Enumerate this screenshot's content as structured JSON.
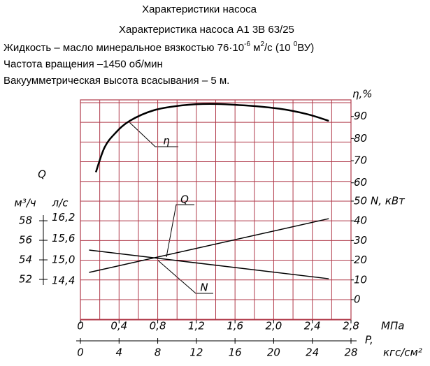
{
  "chart_data": {
    "type": "line",
    "title": "Характеристики насоса",
    "subtitle": "Характеристика насоса А1 3В 63/25",
    "notes": [
      [
        "Жидкость – масло минеральное вязкостью 76·10",
        "-6",
        " м",
        "2",
        "/с (10 ",
        "0",
        "ВУ)"
      ],
      [
        "Частота вращения –1450 об/мин"
      ],
      [
        "Вакуумметрическая высота всасывания – 5 м."
      ]
    ],
    "x_label": "МПа",
    "x2_label_prefix": "P,",
    "x2_label": "кгс/см²",
    "xlim": [
      0,
      2.8
    ],
    "xticks": [
      0,
      {
        "value": 0.4,
        "label": "0,4"
      },
      {
        "value": 0.8,
        "label": "0,8"
      },
      {
        "value": 1.2,
        "label": "1,2"
      },
      {
        "value": 1.6,
        "label": "1,6"
      },
      {
        "value": 2.0,
        "label": "2,0"
      },
      {
        "value": 2.4,
        "label": "2,4"
      },
      {
        "value": 2.8,
        "label": "2,8"
      }
    ],
    "x2lim": [
      0,
      28
    ],
    "x2ticks": [
      0,
      4,
      8,
      12,
      16,
      20,
      24,
      28
    ],
    "xgrid": [
      0,
      0.2,
      0.4,
      0.6,
      0.8,
      1.0,
      1.2,
      1.4,
      1.6,
      1.8,
      2.0,
      2.2,
      2.4,
      2.6,
      2.8
    ],
    "ygrid": [
      -10,
      0,
      10,
      20,
      30,
      40,
      50,
      60,
      70,
      80,
      90,
      100
    ],
    "grid_color": "#b03a4a",
    "axes": {
      "eta": {
        "label": "η,%",
        "lim": [
          -2,
          97.5
        ],
        "ticks": [
          60,
          70,
          80,
          90
        ]
      },
      "N": {
        "label": "N, кВт",
        "lim": [
          -10.3,
          101.4
        ],
        "ticks": [
          0,
          10,
          20,
          30,
          40,
          50
        ]
      },
      "Q": {
        "label": "Q",
        "unit": "м³/ч",
        "lim": [
          47.86,
          70.36
        ],
        "ticks": [
          52,
          54,
          56,
          58
        ]
      },
      "Q_ls": {
        "unit": "л/с",
        "lim": [
          13.29,
          19.54
        ],
        "ticks": [
          {
            "value": 14.4,
            "label": "14,4"
          },
          {
            "value": 15.0,
            "label": "15,0"
          },
          {
            "value": 15.6,
            "label": "15,6"
          },
          {
            "value": 16.2,
            "label": "16,2"
          }
        ]
      }
    },
    "series": [
      {
        "name": "η",
        "color": "#000000",
        "axis": "eta",
        "x": [
          0.16,
          0.25,
          0.36,
          0.51,
          0.76,
          1.05,
          1.34,
          1.7,
          2.06,
          2.35,
          2.57
        ],
        "values": [
          64.8,
          76,
          82.4,
          88,
          92.8,
          95,
          95.7,
          95,
          93.5,
          91,
          88
        ]
      },
      {
        "name": "Q",
        "color": "#000000",
        "axis": "Q",
        "x": [
          0.09,
          2.57
        ],
        "values": [
          55.0,
          52.07
        ]
      },
      {
        "name": "N",
        "color": "#000000",
        "axis": "N",
        "x": [
          0.09,
          2.57
        ],
        "values": [
          13.8,
          41.1
        ]
      }
    ]
  }
}
